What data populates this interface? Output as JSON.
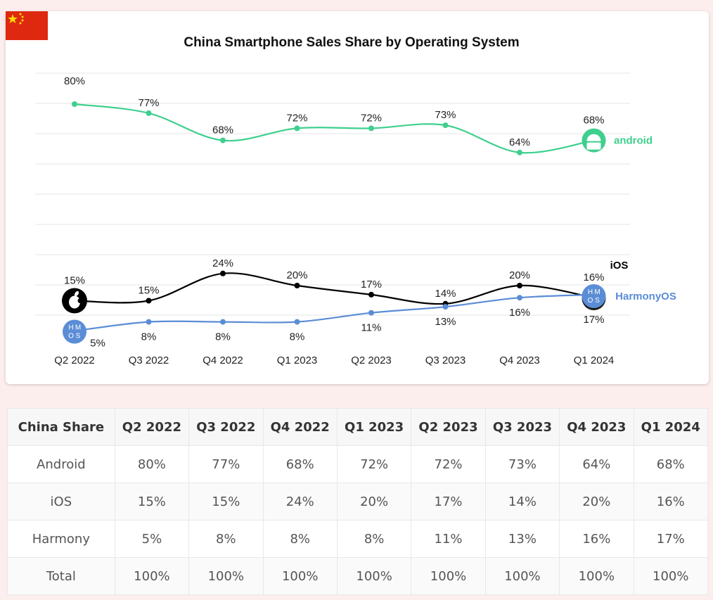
{
  "chart_data": {
    "type": "line",
    "title": "China Smartphone Sales Share by Operating System",
    "categories": [
      "Q2 2022",
      "Q3 2022",
      "Q4 2022",
      "Q1 2023",
      "Q2 2023",
      "Q3 2023",
      "Q4 2023",
      "Q1 2024"
    ],
    "series": [
      {
        "name": "Android",
        "legend_label": "android",
        "color": "#3ecf8e",
        "values": [
          80,
          77,
          68,
          72,
          72,
          73,
          64,
          68
        ],
        "labels": [
          "80%",
          "77%",
          "68%",
          "72%",
          "72%",
          "73%",
          "64%",
          "68%"
        ]
      },
      {
        "name": "iOS",
        "legend_label": "iOS",
        "color": "#000000",
        "values": [
          15,
          15,
          24,
          20,
          17,
          14,
          20,
          16
        ],
        "labels": [
          "15%",
          "15%",
          "24%",
          "20%",
          "17%",
          "14%",
          "20%",
          "16%"
        ]
      },
      {
        "name": "HarmonyOS",
        "legend_label": "HarmonyOS",
        "color": "#5b8dd6",
        "values": [
          5,
          8,
          8,
          8,
          11,
          13,
          16,
          17
        ],
        "labels": [
          "5%",
          "8%",
          "8%",
          "8%",
          "11%",
          "13%",
          "16%",
          "17%"
        ]
      }
    ],
    "ylim": [
      0,
      90
    ],
    "grid": true,
    "xlabel": "",
    "ylabel": ""
  },
  "icons": {
    "android_logo": "android-robot-icon",
    "ios_logo": "apple-logo-icon",
    "harmony_logo": "harmonyos-logo-icon",
    "flag": "china-flag-icon"
  },
  "harmony_badge_letters": [
    "H",
    "M",
    "O",
    "S"
  ],
  "table": {
    "headers": [
      "China Share",
      "Q2 2022",
      "Q3 2022",
      "Q4 2022",
      "Q1 2023",
      "Q2 2023",
      "Q3 2023",
      "Q4 2023",
      "Q1 2024"
    ],
    "rows": [
      [
        "Android",
        "80%",
        "77%",
        "68%",
        "72%",
        "72%",
        "73%",
        "64%",
        "68%"
      ],
      [
        "iOS",
        "15%",
        "15%",
        "24%",
        "20%",
        "17%",
        "14%",
        "20%",
        "16%"
      ],
      [
        "Harmony",
        "5%",
        "8%",
        "8%",
        "8%",
        "11%",
        "13%",
        "16%",
        "17%"
      ],
      [
        "Total",
        "100%",
        "100%",
        "100%",
        "100%",
        "100%",
        "100%",
        "100%",
        "100%"
      ]
    ]
  }
}
